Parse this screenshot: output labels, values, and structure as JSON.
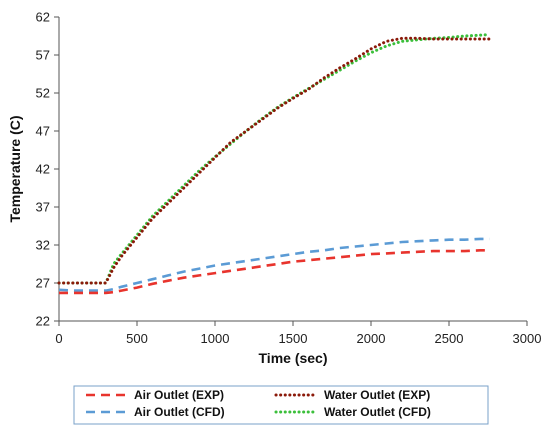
{
  "chart_data": {
    "type": "line",
    "title": "",
    "xlabel": "Time (sec)",
    "ylabel": "Temperature (C)",
    "xlim": [
      0,
      3000
    ],
    "ylim": [
      22,
      62
    ],
    "xticks": [
      "0",
      "500",
      "1000",
      "1500",
      "2000",
      "2500",
      "3000"
    ],
    "yticks": [
      "22",
      "27",
      "32",
      "37",
      "42",
      "47",
      "52",
      "57",
      "62"
    ],
    "grid": false,
    "legend_position": "bottom",
    "series": [
      {
        "name": "Air Outlet (EXP)",
        "color": "#e8342d",
        "style": "dashed",
        "x": [
          0,
          100,
          200,
          300,
          350,
          400,
          500,
          600,
          700,
          800,
          900,
          1000,
          1100,
          1200,
          1300,
          1400,
          1500,
          1600,
          1700,
          1800,
          1900,
          2000,
          2100,
          2200,
          2300,
          2400,
          2500,
          2600,
          2700,
          2760
        ],
        "y": [
          25.7,
          25.7,
          25.7,
          25.7,
          25.8,
          26.0,
          26.4,
          26.9,
          27.3,
          27.7,
          28.0,
          28.3,
          28.6,
          28.9,
          29.2,
          29.5,
          29.8,
          30.0,
          30.2,
          30.4,
          30.6,
          30.8,
          30.9,
          31.0,
          31.1,
          31.2,
          31.2,
          31.2,
          31.3,
          31.3
        ]
      },
      {
        "name": "Water Outlet (EXP)",
        "color": "#8b1a0a",
        "style": "dotted",
        "x": [
          0,
          100,
          200,
          300,
          350,
          400,
          500,
          600,
          700,
          800,
          900,
          1000,
          1100,
          1200,
          1300,
          1400,
          1500,
          1600,
          1700,
          1800,
          1900,
          2000,
          2100,
          2200,
          2300,
          2400,
          2500,
          2600,
          2700,
          2760
        ],
        "y": [
          27.0,
          27.0,
          27.0,
          27.0,
          29.0,
          30.5,
          33.0,
          35.5,
          37.5,
          39.5,
          41.5,
          43.5,
          45.5,
          47.0,
          48.5,
          50.0,
          51.3,
          52.5,
          54.0,
          55.3,
          56.5,
          57.8,
          58.8,
          59.2,
          59.2,
          59.1,
          59.1,
          59.1,
          59.1,
          59.1
        ]
      },
      {
        "name": "Air Outlet (CFD)",
        "color": "#5b9bd5",
        "style": "dashed",
        "x": [
          0,
          100,
          200,
          300,
          350,
          400,
          500,
          600,
          700,
          800,
          900,
          1000,
          1100,
          1200,
          1300,
          1400,
          1500,
          1600,
          1700,
          1800,
          1900,
          2000,
          2100,
          2200,
          2300,
          2400,
          2500,
          2600,
          2700,
          2760
        ],
        "y": [
          26.1,
          26.0,
          26.0,
          26.0,
          26.2,
          26.5,
          27.0,
          27.5,
          28.0,
          28.5,
          28.9,
          29.3,
          29.6,
          29.9,
          30.2,
          30.5,
          30.8,
          31.1,
          31.3,
          31.6,
          31.8,
          32.0,
          32.2,
          32.4,
          32.5,
          32.6,
          32.7,
          32.7,
          32.8,
          32.8
        ]
      },
      {
        "name": "Water Outlet (CFD)",
        "color": "#3bbf3b",
        "style": "dotted",
        "x": [
          0,
          100,
          200,
          300,
          350,
          400,
          500,
          600,
          700,
          800,
          900,
          1000,
          1100,
          1200,
          1300,
          1400,
          1500,
          1600,
          1700,
          1800,
          1900,
          2000,
          2100,
          2200,
          2300,
          2400,
          2500,
          2600,
          2700,
          2760
        ],
        "y": [
          27.0,
          27.0,
          27.0,
          27.0,
          29.5,
          30.8,
          33.3,
          35.8,
          37.8,
          39.8,
          41.8,
          43.6,
          45.3,
          47.0,
          48.6,
          50.1,
          51.4,
          52.6,
          53.8,
          55.0,
          56.2,
          57.3,
          58.2,
          58.8,
          59.0,
          59.2,
          59.3,
          59.5,
          59.6,
          59.7
        ]
      }
    ]
  }
}
